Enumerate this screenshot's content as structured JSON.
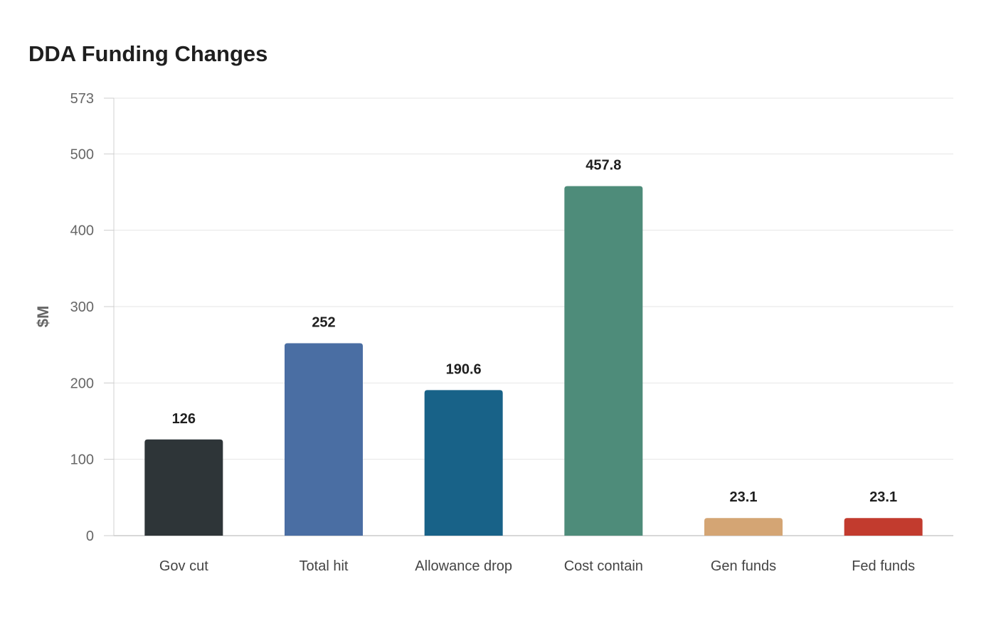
{
  "chart_data": {
    "type": "bar",
    "title": "DDA Funding Changes",
    "xlabel": "",
    "ylabel": "$M",
    "categories": [
      "Gov cut",
      "Total hit",
      "Allowance drop",
      "Cost contain",
      "Gen funds",
      "Fed funds"
    ],
    "values": [
      126,
      252,
      190.6,
      457.8,
      23.1,
      23.1
    ],
    "value_labels": [
      "126",
      "252",
      "190.6",
      "457.8",
      "23.1",
      "23.1"
    ],
    "colors": [
      "#2e3538",
      "#4a6ea3",
      "#186288",
      "#4e8c7a",
      "#d4a574",
      "#c23b2e"
    ],
    "ylim": [
      0,
      573
    ],
    "yticks": [
      0,
      100,
      200,
      300,
      400,
      500,
      573
    ],
    "grid": true,
    "legend": "none"
  }
}
